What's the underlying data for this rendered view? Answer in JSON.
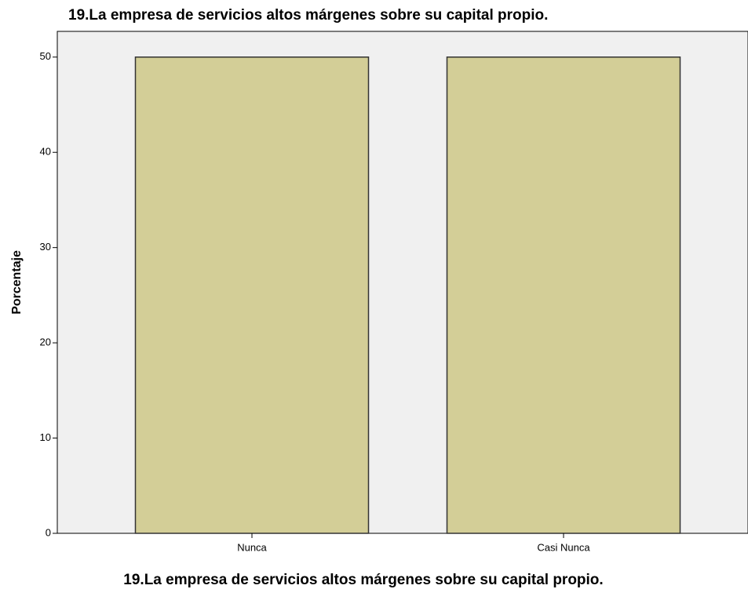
{
  "chart_data": {
    "type": "bar",
    "title": "19.La empresa de servicios altos márgenes sobre su capital propio.",
    "x_label": "19.La empresa de servicios altos márgenes sobre su capital propio.",
    "y_label": "Porcentaje",
    "categories": [
      "Nunca",
      "Casi Nunca"
    ],
    "values": [
      50,
      50
    ],
    "color": "#d3ce97",
    "ylim": [
      0,
      52.7
    ],
    "yticks": [
      0,
      10,
      20,
      30,
      40,
      50
    ],
    "grid": false
  }
}
